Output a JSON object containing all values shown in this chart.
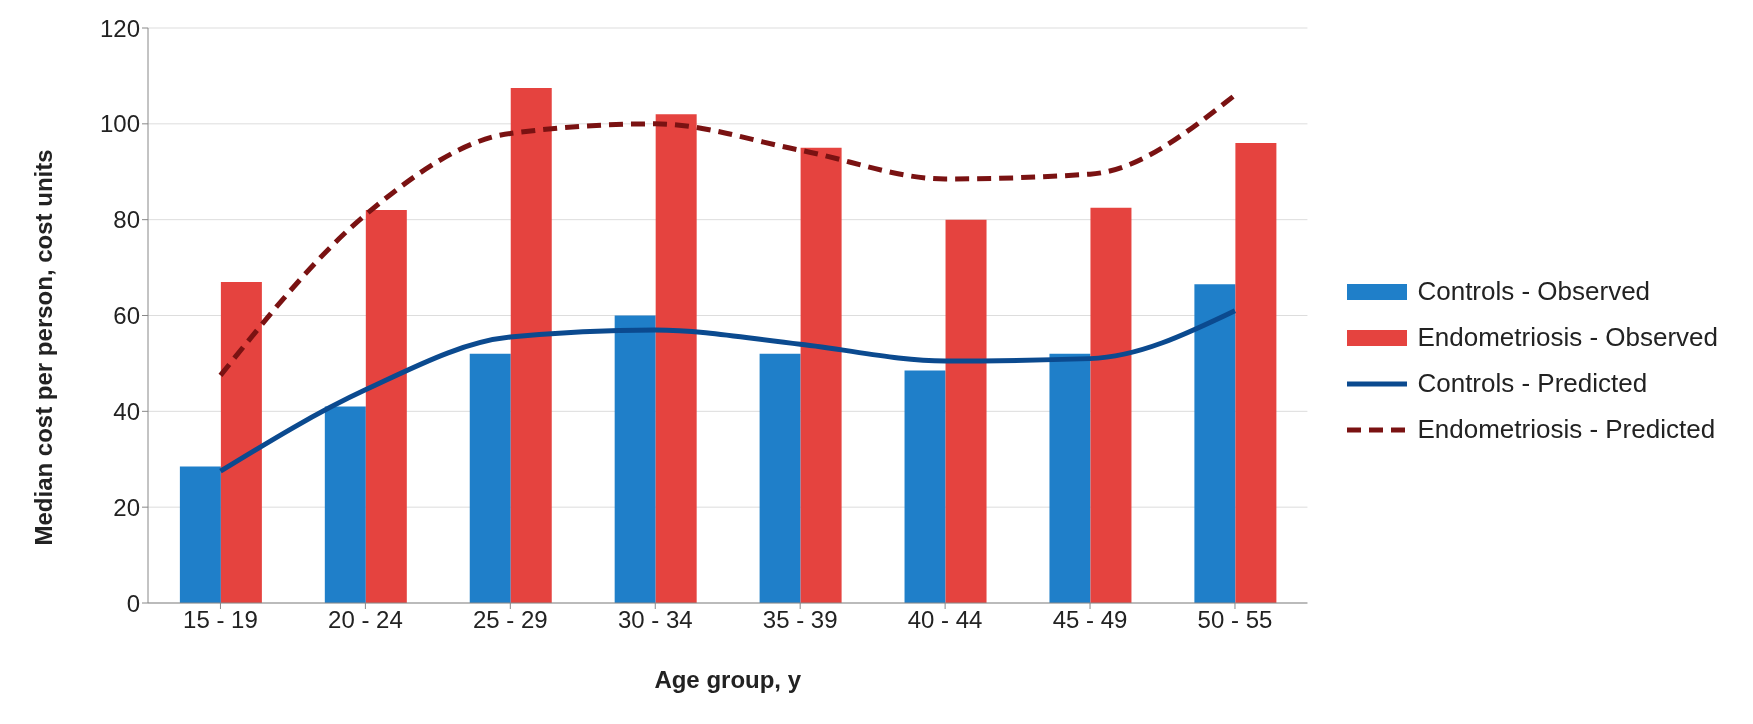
{
  "chart_data": {
    "type": "bar",
    "xlabel": "Age group, y",
    "ylabel": "Median cost per person, cost units",
    "categories": [
      "15 - 19",
      "20 - 24",
      "25 - 29",
      "30 - 34",
      "35 - 39",
      "40 - 44",
      "45 - 49",
      "50 - 55"
    ],
    "series": [
      {
        "name": "Controls - Observed",
        "color": "#1f7fc9",
        "values": [
          28.5,
          41,
          52,
          60,
          52,
          48.5,
          52,
          66.5
        ]
      },
      {
        "name": "Endometriosis - Observed",
        "color": "#e5433f",
        "values": [
          67,
          82,
          107.5,
          102,
          95,
          80,
          82.5,
          96
        ]
      },
      {
        "name": "Controls - Predicted",
        "type": "line",
        "color": "#0b4a8f",
        "line_style": "solid",
        "values": [
          27.5,
          44.5,
          55.5,
          57,
          54,
          50.5,
          51,
          61
        ]
      },
      {
        "name": "Endometriosis - Predicted",
        "type": "line",
        "color": "#7a1212",
        "line_style": "dashed",
        "values": [
          47.5,
          81,
          98,
          100,
          94.5,
          88.5,
          89.5,
          106
        ]
      }
    ],
    "ylim": [
      0,
      120
    ],
    "yticks": [
      0,
      20,
      40,
      60,
      80,
      100,
      120
    ],
    "grid": "y",
    "legend": "right",
    "marker": "none"
  }
}
